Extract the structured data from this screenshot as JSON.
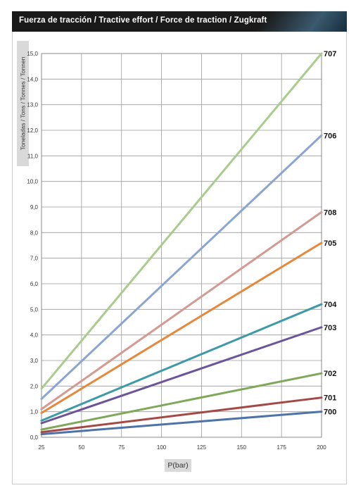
{
  "header": {
    "title": "Fuerza de tracción / Tractive effort / Force de traction / Zugkraft"
  },
  "chart_data": {
    "type": "line",
    "xlabel": "P(bar)",
    "ylabel": "Toneladas / Tons / Tonnes / Tonnen",
    "xlim": [
      25,
      200
    ],
    "ylim": [
      0,
      15
    ],
    "x_ticks": [
      "25",
      "50",
      "75",
      "100",
      "125",
      "150",
      "175",
      "200"
    ],
    "y_ticks": [
      "0,0",
      "1,0",
      "2,0",
      "3,0",
      "4,0",
      "5,0",
      "6,0",
      "7,0",
      "8,0",
      "9,0",
      "10,0",
      "11,0",
      "12,0",
      "13,0",
      "14,0",
      "15,0"
    ],
    "grid": true,
    "series": [
      {
        "name": "707",
        "color": "#a9cc8e",
        "x": [
          25,
          200
        ],
        "values": [
          1.9,
          15.0
        ]
      },
      {
        "name": "706",
        "color": "#8aa6d0",
        "x": [
          25,
          200
        ],
        "values": [
          1.5,
          11.8
        ]
      },
      {
        "name": "708",
        "color": "#d29a90",
        "x": [
          25,
          200
        ],
        "values": [
          1.1,
          8.8
        ]
      },
      {
        "name": "705",
        "color": "#e5883c",
        "x": [
          25,
          200
        ],
        "values": [
          0.95,
          7.6
        ]
      },
      {
        "name": "704",
        "color": "#3d9aa6",
        "x": [
          25,
          200
        ],
        "values": [
          0.65,
          5.2
        ]
      },
      {
        "name": "703",
        "color": "#6b5598",
        "x": [
          25,
          200
        ],
        "values": [
          0.55,
          4.3
        ]
      },
      {
        "name": "702",
        "color": "#7fa85a",
        "x": [
          25,
          200
        ],
        "values": [
          0.3,
          2.5
        ]
      },
      {
        "name": "701",
        "color": "#a34a46",
        "x": [
          25,
          200
        ],
        "values": [
          0.2,
          1.55
        ]
      },
      {
        "name": "700",
        "color": "#4d73a8",
        "x": [
          25,
          200
        ],
        "values": [
          0.12,
          1.0
        ]
      }
    ]
  }
}
